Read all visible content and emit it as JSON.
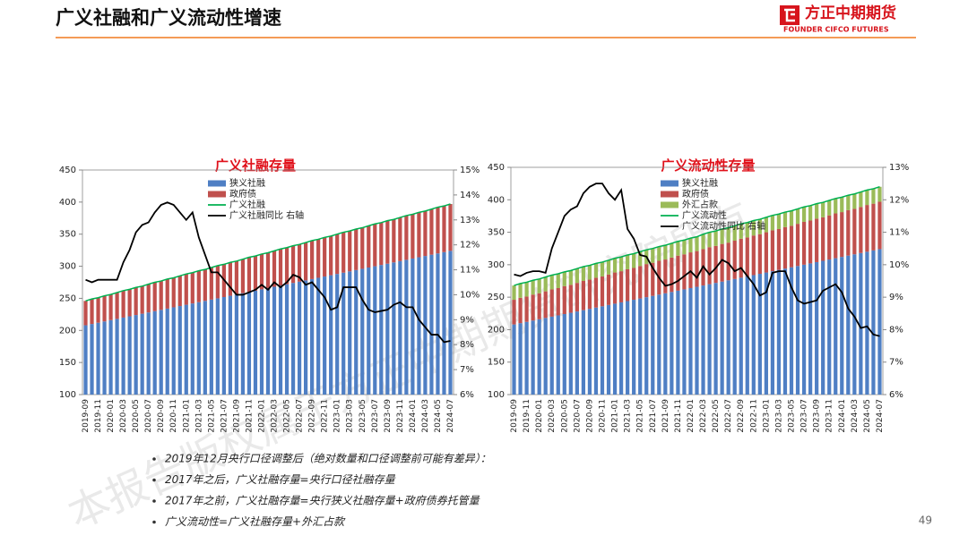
{
  "header": {
    "title": "广义社融和广义流动性增速",
    "logo_cn": "方正中期期货",
    "logo_en": "FOUNDER CIFCO FUTURES"
  },
  "watermark": "本报告版权属于方正中期期货研究院所有",
  "notes": [
    "2019年12月央行口径调整后（绝对数量和口径调整前可能有差异）：",
    "2017年之后，广义社融存量=央行口径社融存量",
    "2017年之前，广义社融存量=央行狭义社融存量+政府债券托管量",
    "广义流动性=广义社融存量+外汇占款"
  ],
  "page_number": "49",
  "chart_data": [
    {
      "type": "stacked_bar",
      "title": "广义社融存量",
      "categories": [
        "2019-09",
        null,
        "2019-11",
        null,
        "2020-01",
        null,
        "2020-03",
        null,
        "2020-05",
        null,
        "2020-07",
        null,
        "2020-09",
        null,
        "2020-11",
        null,
        "2021-01",
        null,
        "2021-03",
        null,
        "2021-05",
        null,
        "2021-07",
        null,
        "2021-09",
        null,
        "2021-11",
        null,
        "2022-01",
        null,
        "2022-03",
        null,
        "2022-05",
        null,
        "2022-07",
        null,
        "2022-09",
        null,
        "2022-11",
        null,
        "2023-01",
        null,
        "2023-03",
        null,
        "2023-05",
        null,
        "2023-07",
        null,
        "2023-09",
        null,
        "2023-11",
        null,
        "2024-01",
        null,
        "2024-03",
        null,
        "2024-05",
        null,
        "2024-07"
      ],
      "ylim": [
        100,
        450
      ],
      "yticks": [
        100,
        150,
        200,
        250,
        300,
        350,
        400,
        450
      ],
      "y2lim": [
        6,
        15
      ],
      "y2ticks": [
        {
          "value": 6,
          "label": "6%"
        },
        {
          "value": 7,
          "label": "7%"
        },
        {
          "value": 8,
          "label": "8%"
        },
        {
          "value": 9,
          "label": "9%"
        },
        {
          "value": 10,
          "label": "10%"
        },
        {
          "value": 11,
          "label": "11%"
        },
        {
          "value": 12,
          "label": "12%"
        },
        {
          "value": 13,
          "label": "13%"
        },
        {
          "value": 14,
          "label": "14%"
        },
        {
          "value": 15,
          "label": "15%"
        }
      ],
      "series": [
        {
          "name": "狭义社融",
          "kind": "bar",
          "color": "#4f7fc4",
          "values": [
            208,
            210,
            212,
            214,
            216,
            218,
            220,
            222,
            224,
            226,
            228,
            230,
            232,
            234,
            236,
            238,
            240,
            242,
            244,
            246,
            248,
            250,
            252,
            254,
            256,
            258,
            260,
            262,
            264,
            266,
            268,
            270,
            272,
            274,
            276,
            278,
            280,
            282,
            284,
            286,
            288,
            290,
            292,
            294,
            296,
            298,
            300,
            302,
            304,
            306,
            308,
            310,
            312,
            314,
            316,
            318,
            320,
            322,
            324
          ]
        },
        {
          "name": "政府债",
          "kind": "bar",
          "color": "#c0504d",
          "values": [
            38,
            39,
            39,
            40,
            40,
            41,
            42,
            42,
            43,
            43,
            44,
            45,
            45,
            46,
            46,
            47,
            48,
            48,
            49,
            49,
            50,
            51,
            51,
            52,
            52,
            53,
            54,
            54,
            55,
            55,
            56,
            57,
            57,
            58,
            58,
            59,
            60,
            60,
            61,
            61,
            62,
            63,
            63,
            64,
            64,
            65,
            66,
            66,
            67,
            67,
            68,
            69,
            69,
            70,
            70,
            71,
            72,
            72,
            73
          ]
        },
        {
          "name": "广义社融",
          "kind": "line",
          "color": "#00b050",
          "values": [
            246,
            249,
            251,
            254,
            256,
            259,
            262,
            264,
            267,
            269,
            272,
            275,
            277,
            280,
            282,
            285,
            288,
            290,
            293,
            295,
            298,
            301,
            303,
            306,
            308,
            311,
            314,
            316,
            319,
            321,
            324,
            327,
            329,
            332,
            334,
            337,
            340,
            342,
            345,
            347,
            350,
            353,
            355,
            358,
            360,
            363,
            366,
            368,
            371,
            373,
            376,
            379,
            381,
            384,
            386,
            389,
            392,
            394,
            397
          ]
        },
        {
          "name": "广义社融同比 右轴",
          "kind": "line",
          "axis": "y2",
          "color": "#000000",
          "values": [
            10.6,
            10.5,
            10.6,
            10.6,
            10.6,
            10.6,
            11.3,
            11.8,
            12.5,
            12.8,
            12.9,
            13.3,
            13.6,
            13.7,
            13.6,
            13.3,
            13.0,
            13.3,
            12.3,
            11.6,
            10.9,
            10.9,
            10.6,
            10.3,
            10.0,
            10.0,
            10.1,
            10.2,
            10.4,
            10.2,
            10.5,
            10.3,
            10.5,
            10.8,
            10.7,
            10.4,
            10.5,
            10.2,
            9.9,
            9.4,
            9.5,
            10.3,
            10.3,
            10.3,
            9.8,
            9.4,
            9.3,
            9.35,
            9.4,
            9.6,
            9.7,
            9.5,
            9.5,
            9.0,
            8.7,
            8.4,
            8.4,
            8.1,
            8.15
          ]
        }
      ]
    },
    {
      "type": "stacked_bar",
      "title": "广义流动性存量",
      "categories": [
        "2019-09",
        null,
        "2019-11",
        null,
        "2020-01",
        null,
        "2020-03",
        null,
        "2020-05",
        null,
        "2020-07",
        null,
        "2020-09",
        null,
        "2020-11",
        null,
        "2021-01",
        null,
        "2021-03",
        null,
        "2021-05",
        null,
        "2021-07",
        null,
        "2021-09",
        null,
        "2021-11",
        null,
        "2022-01",
        null,
        "2022-03",
        null,
        "2022-05",
        null,
        "2022-07",
        null,
        "2022-09",
        null,
        "2022-11",
        null,
        "2023-01",
        null,
        "2023-03",
        null,
        "2023-05",
        null,
        "2023-07",
        null,
        "2023-09",
        null,
        "2023-11",
        null,
        "2024-01",
        null,
        "2024-03",
        null,
        "2024-05",
        null,
        "2024-07"
      ],
      "ylim": [
        100,
        450
      ],
      "yticks": [
        100,
        150,
        200,
        250,
        300,
        350,
        400,
        450
      ],
      "y2lim": [
        6,
        13
      ],
      "y2ticks": [
        {
          "value": 6,
          "label": "6%"
        },
        {
          "value": 7,
          "label": "7%"
        },
        {
          "value": 8,
          "label": "8%"
        },
        {
          "value": 9,
          "label": "9%"
        },
        {
          "value": 10,
          "label": "10%"
        },
        {
          "value": 11,
          "label": "11%"
        },
        {
          "value": 12,
          "label": "12%"
        },
        {
          "value": 13,
          "label": "13%"
        }
      ],
      "series": [
        {
          "name": "狭义社融",
          "kind": "bar",
          "color": "#4f7fc4",
          "values": [
            208,
            210,
            212,
            214,
            216,
            218,
            220,
            222,
            224,
            226,
            228,
            230,
            232,
            234,
            236,
            238,
            240,
            242,
            244,
            246,
            248,
            250,
            252,
            254,
            256,
            258,
            260,
            262,
            264,
            266,
            268,
            270,
            272,
            274,
            276,
            278,
            280,
            282,
            284,
            286,
            288,
            290,
            292,
            294,
            296,
            298,
            300,
            302,
            304,
            306,
            308,
            310,
            312,
            314,
            316,
            318,
            320,
            322,
            324
          ]
        },
        {
          "name": "政府债",
          "kind": "bar",
          "color": "#c0504d",
          "values": [
            38,
            39,
            39,
            40,
            40,
            41,
            42,
            42,
            43,
            43,
            44,
            45,
            45,
            46,
            46,
            47,
            48,
            48,
            49,
            49,
            50,
            51,
            51,
            52,
            52,
            53,
            54,
            54,
            55,
            55,
            56,
            57,
            57,
            58,
            58,
            59,
            60,
            60,
            61,
            61,
            62,
            63,
            63,
            64,
            64,
            65,
            66,
            66,
            67,
            67,
            68,
            69,
            69,
            70,
            70,
            71,
            72,
            72,
            73
          ]
        },
        {
          "name": "外汇占款",
          "kind": "bar",
          "color": "#9bbb59",
          "values": [
            22,
            22,
            22,
            22,
            22,
            22,
            22,
            22,
            22,
            22,
            22,
            22,
            22,
            22,
            22,
            22,
            22,
            22,
            22,
            22,
            22,
            22,
            22,
            22,
            22,
            22,
            22,
            22,
            22,
            22,
            23,
            23,
            23,
            23,
            23,
            23,
            23,
            23,
            23,
            23,
            23,
            23,
            23,
            23,
            23,
            23,
            23,
            23,
            23,
            23,
            23,
            23,
            23,
            23,
            23,
            23,
            23,
            23,
            23
          ]
        },
        {
          "name": "广义流动性",
          "kind": "line",
          "color": "#00b050",
          "values": [
            268,
            271,
            273,
            276,
            278,
            281,
            284,
            286,
            289,
            291,
            294,
            297,
            299,
            302,
            304,
            307,
            310,
            312,
            315,
            317,
            320,
            323,
            325,
            328,
            330,
            333,
            336,
            338,
            341,
            343,
            347,
            350,
            352,
            355,
            357,
            360,
            363,
            365,
            368,
            370,
            373,
            376,
            378,
            381,
            383,
            386,
            389,
            391,
            394,
            396,
            399,
            402,
            404,
            407,
            409,
            412,
            415,
            417,
            420
          ]
        },
        {
          "name": "广义流动性同比 右轴",
          "kind": "line",
          "axis": "y2",
          "color": "#000000",
          "values": [
            9.7,
            9.65,
            9.75,
            9.8,
            9.8,
            9.75,
            10.5,
            11.0,
            11.5,
            11.7,
            11.8,
            12.2,
            12.4,
            12.5,
            12.5,
            12.2,
            12.0,
            12.3,
            11.1,
            10.8,
            10.3,
            10.25,
            9.9,
            9.6,
            9.35,
            9.4,
            9.5,
            9.65,
            9.8,
            9.6,
            9.95,
            9.7,
            9.9,
            10.15,
            10.05,
            9.8,
            9.9,
            9.65,
            9.4,
            9.05,
            9.15,
            9.75,
            9.8,
            9.8,
            9.3,
            8.9,
            8.8,
            8.85,
            8.9,
            9.2,
            9.3,
            9.4,
            9.15,
            8.65,
            8.4,
            8.05,
            8.1,
            7.85,
            7.8
          ]
        }
      ]
    }
  ]
}
